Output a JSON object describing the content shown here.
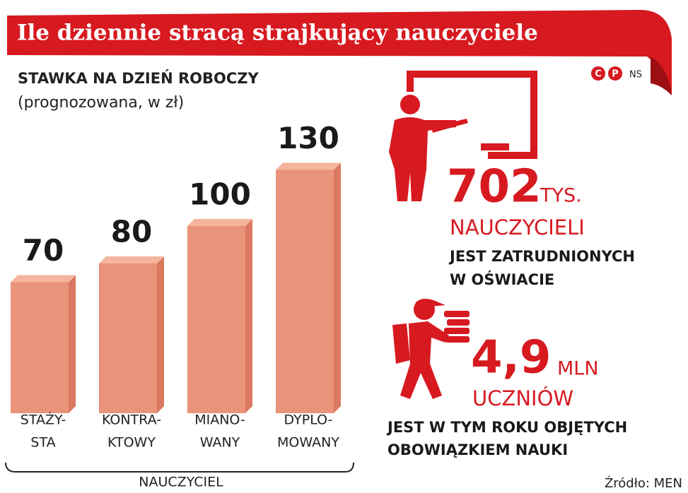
{
  "chart_data": {
    "type": "bar",
    "title": "Ile dziennie stracą strajkujący nauczyciele",
    "subtitle": [
      "STAWKA NA DZIEŃ ROBOCZY",
      "(prognozowana, w zł)"
    ],
    "categories": [
      [
        "STAŻY-",
        "STA"
      ],
      [
        "KONTRA-",
        "KTOWY"
      ],
      [
        "MIANO-",
        "WANY"
      ],
      [
        "DYPLO-",
        "MOWANY"
      ]
    ],
    "values": [
      70,
      80,
      100,
      130
    ],
    "color": "#e8937a",
    "group_label": "NAUCZYCIEL",
    "facts": [
      {
        "number": "702",
        "unit": "TYS.",
        "label": "NAUCZYCIELI",
        "text": [
          "JEST ZATRUDNIONYCH",
          "W OŚWIACIE"
        ]
      },
      {
        "number": "4,9",
        "unit": "MLN",
        "label": "UCZNIÓW",
        "text": [
          "JEST W TYM ROKU OBJĘTYCH",
          "OBOWIĄZKIEM NAUKI"
        ]
      }
    ],
    "logo": [
      "C",
      "P"
    ],
    "credit": "NS",
    "source": "Źródło: MEN"
  }
}
